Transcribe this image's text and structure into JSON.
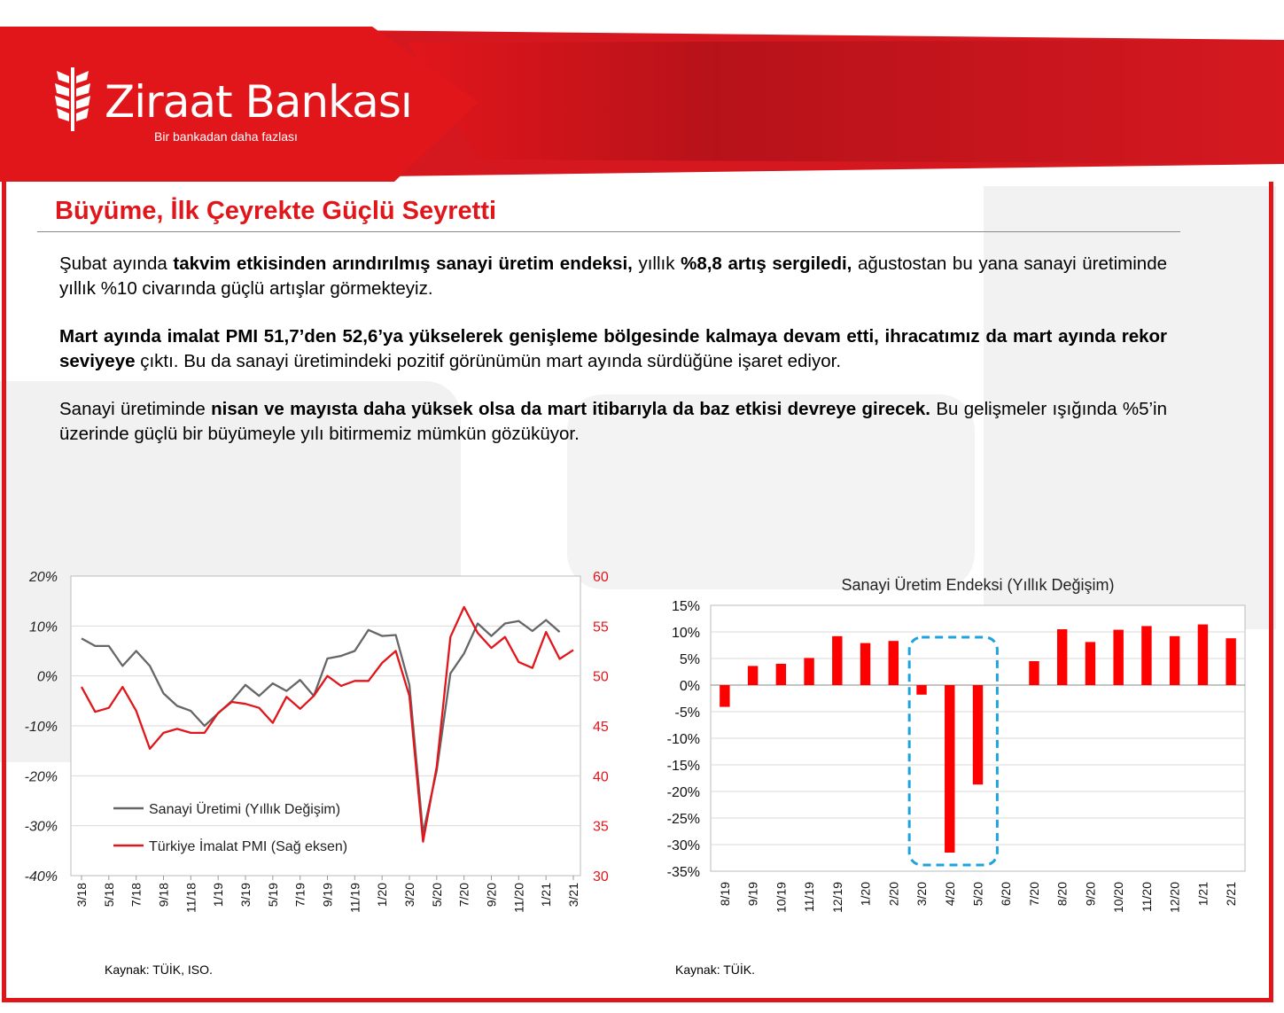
{
  "brand": {
    "name": "Ziraat Bankası",
    "tagline": "Bir bankadan daha fazlası",
    "colors": {
      "red": "#e1161b",
      "dark_red": "#b01217",
      "gray_line": "#666666"
    }
  },
  "title": "Büyüme, İlk Çeyrekte Güçlü Seyretti",
  "paragraphs": {
    "p1": {
      "a": "Şubat ayında ",
      "b": "takvim etkisinden arındırılmış sanayi üretim endeksi,",
      "c": " yıllık ",
      "d": "%8,8 artış sergiledi,",
      "e": " ağustostan bu yana sanayi üretiminde yıllık %10 civarında güçlü artışlar görmekteyiz."
    },
    "p2": {
      "a": "Mart ayında imalat PMI 51,7’den 52,6’ya yükselerek genişleme bölgesinde kalmaya devam etti, ihracatımız da mart ayında rekor seviyeye",
      "b": " çıktı. Bu da sanayi üretimindeki pozitif görünümün mart ayında sürdüğüne işaret ediyor."
    },
    "p3": {
      "a": "Sanayi üretiminde ",
      "b": "nisan ve mayısta daha yüksek olsa da mart itibarıyla da baz etkisi devreye girecek.",
      "c": " Bu gelişmeler ışığında %5’in üzerinde güçlü bir büyümeyle yılı bitirmemiz mümkün gözüküyor."
    }
  },
  "sources": {
    "left": "Kaynak: TÜİK, ISO.",
    "right": "Kaynak: TÜİK."
  },
  "chart_data": [
    {
      "type": "line",
      "title": "",
      "x": [
        "3/18",
        "4/18",
        "5/18",
        "6/18",
        "7/18",
        "8/18",
        "9/18",
        "10/18",
        "11/18",
        "12/18",
        "1/19",
        "2/19",
        "3/19",
        "4/19",
        "5/19",
        "6/19",
        "7/19",
        "8/19",
        "9/19",
        "10/19",
        "11/19",
        "12/19",
        "1/20",
        "2/20",
        "3/20",
        "4/20",
        "5/20",
        "6/20",
        "7/20",
        "8/20",
        "9/20",
        "10/20",
        "11/20",
        "12/20",
        "1/21",
        "2/21",
        "3/21"
      ],
      "x_tick_labels": [
        "3/18",
        "5/18",
        "7/18",
        "9/18",
        "11/18",
        "1/19",
        "3/19",
        "5/19",
        "7/19",
        "9/19",
        "11/19",
        "1/20",
        "3/20",
        "5/20",
        "7/20",
        "9/20",
        "11/20",
        "1/21",
        "3/21"
      ],
      "y_left": {
        "ticks": [
          "20%",
          "10%",
          "0%",
          "-10%",
          "-20%",
          "-30%",
          "-40%"
        ],
        "ylim": [
          -40,
          20
        ]
      },
      "y_right": {
        "ticks": [
          "60",
          "55",
          "50",
          "45",
          "40",
          "35",
          "30"
        ],
        "ylim": [
          30,
          60
        ]
      },
      "grid": true,
      "legend_position": "bottom-left",
      "series": [
        {
          "name": "Sanayi Üretimi (Yıllık Değişim)",
          "axis": "left",
          "color": "#666666",
          "values": [
            7.5,
            6,
            6,
            2,
            5,
            2,
            -3.5,
            -6,
            -7,
            -10,
            -7.5,
            -5,
            -1.8,
            -4,
            -1.5,
            -3,
            -0.8,
            -4,
            3.5,
            4,
            5,
            9.2,
            8,
            8.2,
            -1.8,
            -31.5,
            -19,
            0.5,
            4.5,
            10.5,
            8,
            10.5,
            11,
            9,
            11.2,
            8.8,
            null
          ]
        },
        {
          "name": "Türkiye İmalat PMI (Sağ eksen)",
          "axis": "right",
          "color": "#e1161b",
          "values": [
            48.9,
            46.4,
            46.8,
            48.9,
            46.5,
            42.7,
            44.3,
            44.7,
            44.3,
            44.3,
            46.3,
            47.4,
            47.2,
            46.8,
            45.3,
            47.9,
            46.7,
            48,
            50,
            49,
            49.5,
            49.5,
            51.3,
            52.5,
            48,
            33.4,
            40.9,
            53.9,
            56.9,
            54.3,
            52.8,
            53.9,
            51.4,
            50.8,
            54.4,
            51.7,
            52.6
          ]
        }
      ]
    },
    {
      "type": "bar",
      "title": "Sanayi Üretim Endeksi (Yıllık  Değişim)",
      "categories": [
        "8/19",
        "9/19",
        "10/19",
        "11/19",
        "12/19",
        "1/20",
        "2/20",
        "3/20",
        "4/20",
        "5/20",
        "6/20",
        "7/20",
        "8/20",
        "9/20",
        "10/20",
        "11/20",
        "12/20",
        "1/21",
        "2/21"
      ],
      "values": [
        -4.1,
        3.6,
        4.0,
        5.1,
        9.2,
        7.9,
        8.3,
        -1.8,
        -31.5,
        -18.7,
        null,
        4.5,
        10.5,
        8.1,
        10.4,
        11.1,
        9.2,
        11.4,
        8.8
      ],
      "highlight": {
        "from": "3/20",
        "to": "5/20",
        "style": "dashed-box",
        "color": "#1fa3dc"
      },
      "y_ticks": [
        "15%",
        "10%",
        "5%",
        "0%",
        "-5%",
        "-10%",
        "-15%",
        "-20%",
        "-25%",
        "-30%",
        "-35%"
      ],
      "ylim": [
        -35,
        15
      ],
      "grid": true
    }
  ]
}
